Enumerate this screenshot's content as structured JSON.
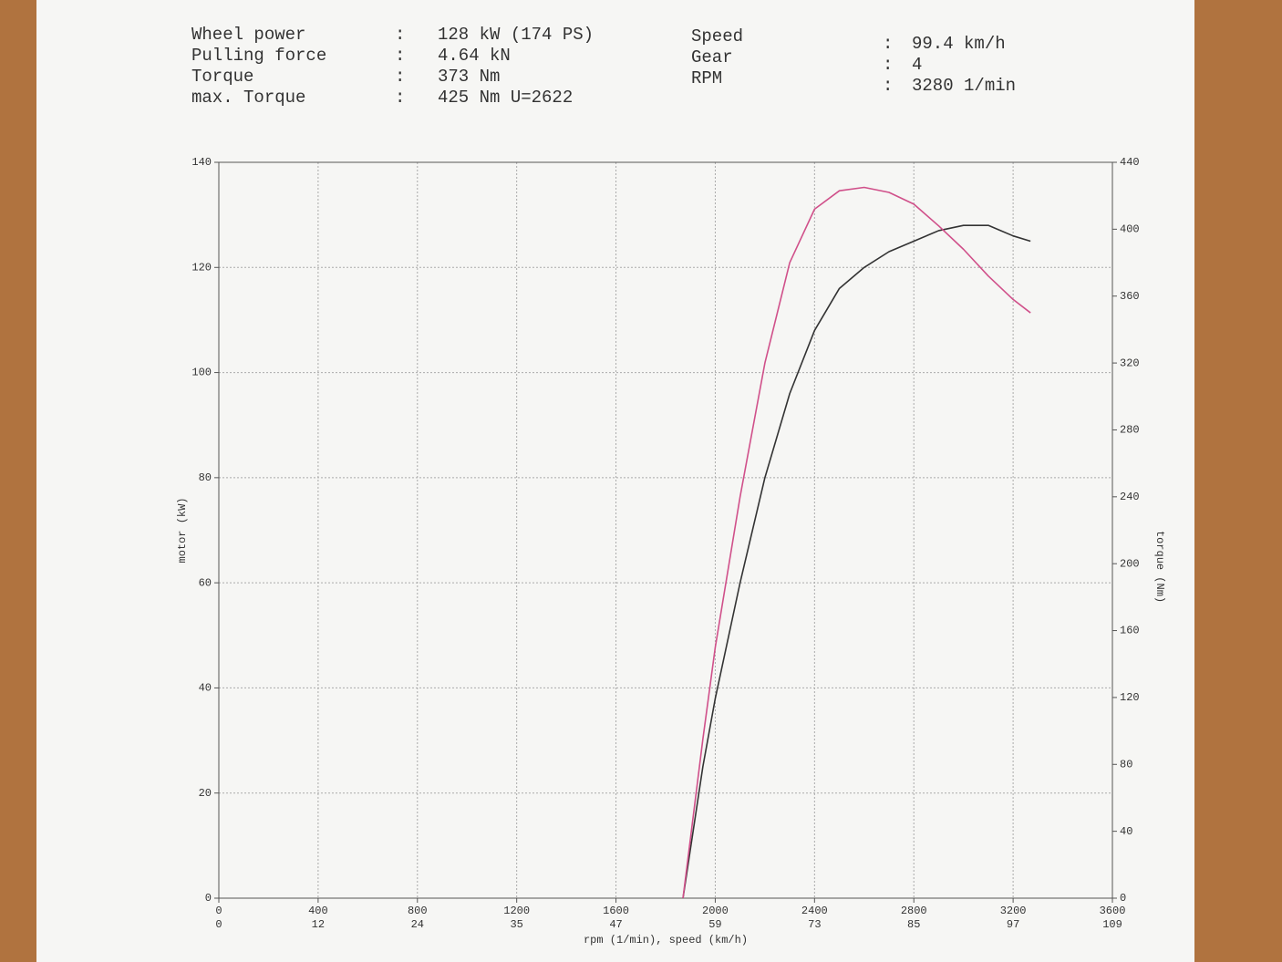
{
  "header": {
    "left": [
      {
        "label": "Wheel power",
        "value": "128 kW (174 PS)"
      },
      {
        "label": "Pulling force",
        "value": "4.64 kN"
      },
      {
        "label": "Torque",
        "value": "373 Nm"
      },
      {
        "label": "max. Torque",
        "value": "425 Nm U=2622"
      }
    ],
    "right": [
      {
        "label": "Speed",
        "value": "99.4 km/h"
      },
      {
        "label": "Gear",
        "value": "4"
      },
      {
        "label": "RPM",
        "value": "3280 1/min"
      }
    ]
  },
  "chart_data": {
    "type": "line",
    "xlabel": "rpm (1/min), speed (km/h)",
    "ylabel": "motor (kW)",
    "y2label": "torque (Nm)",
    "x": [
      1870,
      1950,
      2000,
      2100,
      2200,
      2300,
      2400,
      2500,
      2600,
      2700,
      2800,
      2900,
      3000,
      3100,
      3200,
      3270
    ],
    "series": [
      {
        "name": "motor",
        "color": "#333333",
        "values": [
          0,
          25,
          38,
          60,
          80,
          96,
          108,
          116,
          120,
          123,
          125,
          127,
          128,
          128,
          126,
          125
        ]
      },
      {
        "name": "torque",
        "color": "#d0508a",
        "axis": "y2",
        "values": [
          0,
          95,
          150,
          240,
          320,
          380,
          412,
          423,
          425,
          422,
          415,
          402,
          388,
          372,
          358,
          350
        ]
      }
    ],
    "xlim": [
      0,
      3600
    ],
    "xticks": [
      0,
      400,
      800,
      1200,
      1600,
      2000,
      2400,
      2800,
      3200,
      3600
    ],
    "speed_labels": [
      "0",
      "12",
      "24",
      "35",
      "47",
      "59",
      "73",
      "85",
      "97",
      "109"
    ],
    "ylim": [
      0,
      140
    ],
    "yticks": [
      0,
      20,
      40,
      60,
      80,
      100,
      120,
      140
    ],
    "y2lim": [
      0,
      440
    ],
    "y2ticks": [
      0,
      40,
      80,
      120,
      160,
      200,
      240,
      280,
      320,
      360,
      400,
      440
    ],
    "grid": true
  }
}
